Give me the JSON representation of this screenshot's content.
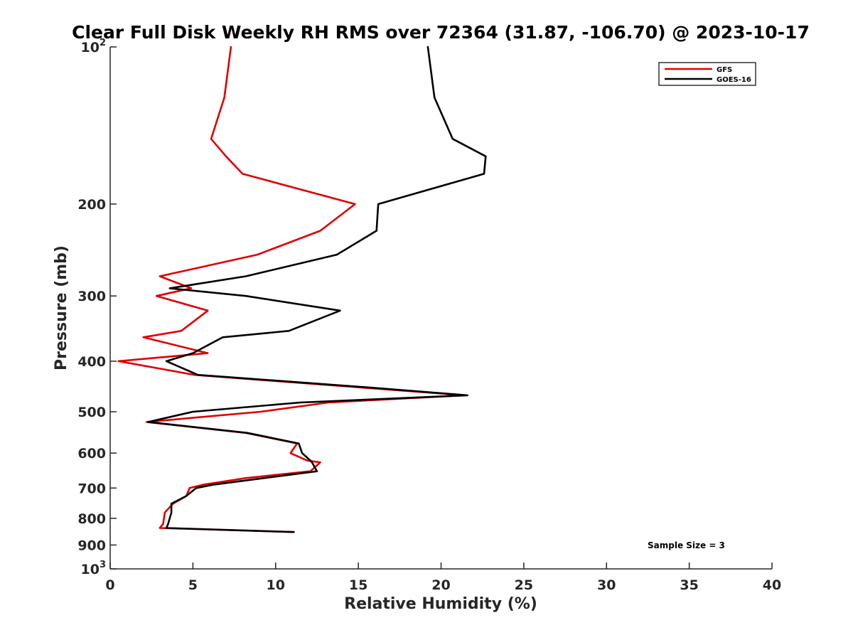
{
  "chart_data": {
    "type": "line",
    "title": "Clear Full Disk Weekly RH RMS over 72364 (31.87, -106.70) @ 2023-10-17",
    "xlabel": "Relative Humidity (%)",
    "ylabel": "Pressure (mb)",
    "xlim": [
      0,
      40
    ],
    "ylim": [
      100,
      1000
    ],
    "y_scale": "log",
    "y_reversed": true,
    "x_ticks": [
      "0",
      "5",
      "10",
      "15",
      "20",
      "25",
      "30",
      "35",
      "40"
    ],
    "x_tick_values": [
      0,
      5,
      10,
      15,
      20,
      25,
      30,
      35,
      40
    ],
    "y_tick_values": [
      100,
      200,
      300,
      400,
      500,
      600,
      700,
      800,
      900,
      1000
    ],
    "y_ticks": [
      {
        "value": 100,
        "base": "10",
        "exp": "2"
      },
      {
        "value": 200,
        "base": "200",
        "exp": ""
      },
      {
        "value": 300,
        "base": "300",
        "exp": ""
      },
      {
        "value": 400,
        "base": "400",
        "exp": ""
      },
      {
        "value": 500,
        "base": "500",
        "exp": ""
      },
      {
        "value": 600,
        "base": "600",
        "exp": ""
      },
      {
        "value": 700,
        "base": "700",
        "exp": ""
      },
      {
        "value": 800,
        "base": "800",
        "exp": ""
      },
      {
        "value": 900,
        "base": "900",
        "exp": ""
      },
      {
        "value": 1000,
        "base": "10",
        "exp": "3"
      }
    ],
    "legend_position": "top-right",
    "annotation": "Sample Size = 3",
    "series": [
      {
        "name": "GFS",
        "color": "#e00000",
        "points": [
          [
            7.3,
            100
          ],
          [
            6.9,
            125
          ],
          [
            6.1,
            150
          ],
          [
            7.0,
            162
          ],
          [
            8.0,
            175
          ],
          [
            14.8,
            200
          ],
          [
            12.7,
            225
          ],
          [
            8.9,
            250
          ],
          [
            3.0,
            275
          ],
          [
            4.9,
            290
          ],
          [
            2.8,
            300
          ],
          [
            5.9,
            320
          ],
          [
            4.3,
            350
          ],
          [
            2.0,
            360
          ],
          [
            5.9,
            386
          ],
          [
            0.5,
            400
          ],
          [
            5.1,
            425
          ],
          [
            21.4,
            465
          ],
          [
            13.2,
            480
          ],
          [
            9.1,
            500
          ],
          [
            2.2,
            523
          ],
          [
            8.2,
            549
          ],
          [
            11.3,
            575
          ],
          [
            10.9,
            600
          ],
          [
            11.9,
            620
          ],
          [
            12.7,
            625
          ],
          [
            12.1,
            650
          ],
          [
            8.2,
            670
          ],
          [
            5.6,
            690
          ],
          [
            4.8,
            700
          ],
          [
            4.6,
            725
          ],
          [
            3.8,
            750
          ],
          [
            3.3,
            780
          ],
          [
            3.2,
            820
          ],
          [
            3.0,
            835
          ],
          [
            11.1,
            850
          ]
        ]
      },
      {
        "name": "GOES-16",
        "color": "#000000",
        "points": [
          [
            19.2,
            100
          ],
          [
            19.6,
            125
          ],
          [
            20.7,
            150
          ],
          [
            22.7,
            162
          ],
          [
            22.6,
            175
          ],
          [
            16.2,
            200
          ],
          [
            16.1,
            225
          ],
          [
            13.7,
            250
          ],
          [
            8.2,
            275
          ],
          [
            3.6,
            290
          ],
          [
            8.2,
            300
          ],
          [
            13.9,
            320
          ],
          [
            10.8,
            350
          ],
          [
            6.8,
            360
          ],
          [
            5.0,
            386
          ],
          [
            3.4,
            400
          ],
          [
            5.3,
            425
          ],
          [
            16.0,
            450
          ],
          [
            21.6,
            465
          ],
          [
            11.5,
            480
          ],
          [
            5.0,
            500
          ],
          [
            2.3,
            523
          ],
          [
            8.3,
            549
          ],
          [
            11.4,
            575
          ],
          [
            11.6,
            600
          ],
          [
            12.1,
            620
          ],
          [
            12.2,
            625
          ],
          [
            12.5,
            650
          ],
          [
            6.2,
            690
          ],
          [
            5.2,
            700
          ],
          [
            4.6,
            725
          ],
          [
            3.7,
            750
          ],
          [
            3.7,
            780
          ],
          [
            3.5,
            820
          ],
          [
            3.4,
            835
          ],
          [
            11.1,
            850
          ]
        ]
      }
    ]
  }
}
